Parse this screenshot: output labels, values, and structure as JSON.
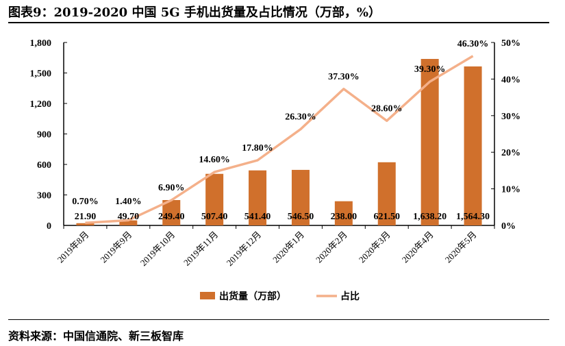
{
  "title": "图表9：2019-2020 中国 5G 手机出货量及占比情况（万部，%）",
  "source": "资料来源：中国信通院、新三板智库",
  "chart_data": {
    "type": "bar+line",
    "categories": [
      "2019年8月",
      "2019年9月",
      "2019年10月",
      "2019年11月",
      "2019年12月",
      "2020年1月",
      "2020年2月",
      "2020年3月",
      "2020年4月",
      "2020年5月"
    ],
    "series": [
      {
        "name": "出货量（万部）",
        "type": "bar",
        "axis": "left",
        "color": "#D0702C",
        "values": [
          21.9,
          49.7,
          249.4,
          507.4,
          541.4,
          546.5,
          238.0,
          621.5,
          1638.2,
          1564.3
        ],
        "labels": [
          "21.90",
          "49.70",
          "249.40",
          "507.40",
          "541.40",
          "546.50",
          "238.00",
          "621.50",
          "1,638.20",
          "1,564.30"
        ]
      },
      {
        "name": "占比",
        "type": "line",
        "axis": "right",
        "color": "#F4B08A",
        "values": [
          0.7,
          1.4,
          6.9,
          14.6,
          17.8,
          26.3,
          37.3,
          28.6,
          39.3,
          46.3
        ],
        "labels": [
          "0.70%",
          "1.40%",
          "6.90%",
          "14.60%",
          "17.80%",
          "26.30%",
          "37.30%",
          "28.60%",
          "39.30%",
          "46.30%"
        ]
      }
    ],
    "y_left": {
      "range": [
        0,
        1800
      ],
      "ticks": [
        0,
        300,
        600,
        900,
        1200,
        1500,
        1800
      ],
      "tick_labels": [
        "0",
        "300",
        "600",
        "900",
        "1,200",
        "1,500",
        "1,800"
      ]
    },
    "y_right": {
      "range": [
        0,
        50
      ],
      "ticks": [
        0,
        10,
        20,
        30,
        40,
        50
      ],
      "tick_labels": [
        "0%",
        "10%",
        "20%",
        "30%",
        "40%",
        "50%"
      ]
    },
    "grid": false,
    "legend": "bottom"
  }
}
